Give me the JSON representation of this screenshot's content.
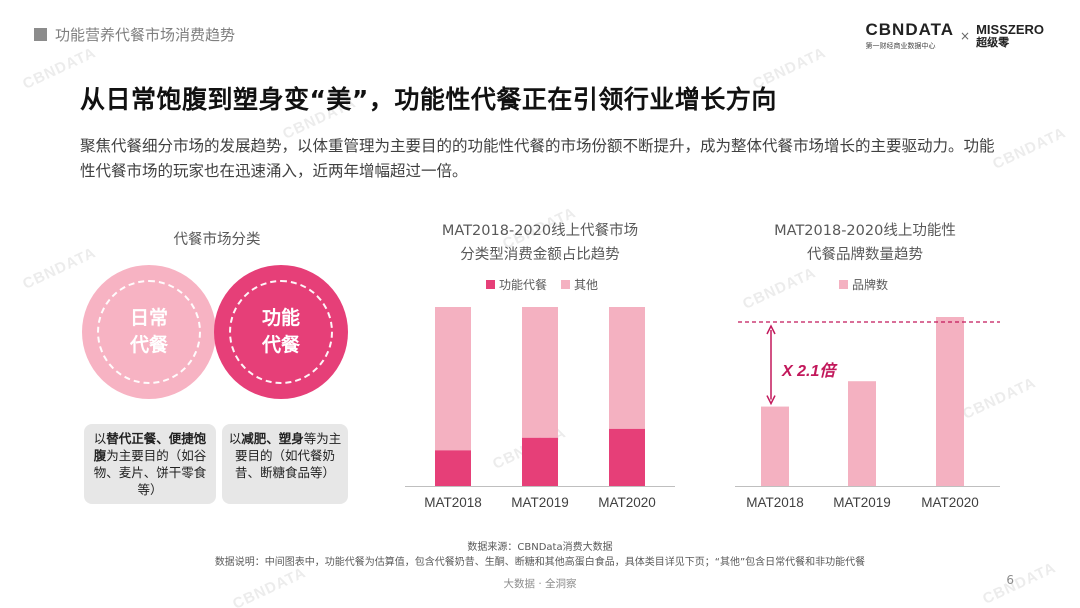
{
  "header": {
    "section_label": "功能营养代餐市场消费趋势",
    "logo_primary": "CBNDATA",
    "logo_primary_sub": "第一财经商业数据中心",
    "logo_separator": "×",
    "logo_secondary": "MISSZERO",
    "logo_secondary_sub": "超级零"
  },
  "headline": "从日常饱腹到塑身变“美”，功能性代餐正在引领行业增长方向",
  "description": "聚焦代餐细分市场的发展趋势，以体重管理为主要目的的功能性代餐的市场份额不断提升，成为整体代餐市场增长的主要驱动力。功能性代餐市场的玩家也在迅速涌入，近两年增幅超过一倍。",
  "classification": {
    "title": "代餐市场分类",
    "circle_left": "日常代餐",
    "circle_right": "功能代餐",
    "box_left": {
      "prefix": "以",
      "bold1": "替代正餐、便捷饱腹",
      "rest": "为主要目的（如谷物、麦片、饼干零食等）"
    },
    "box_right": {
      "prefix": "以",
      "bold1": "减肥、塑身",
      "rest": "等为主要目的（如代餐奶昔、断糖食品等）"
    }
  },
  "chart_data": [
    {
      "type": "bar",
      "stacked": true,
      "title_line1": "MAT2018-2020线上代餐市场",
      "title_line2": "分类型消费金额占比趋势",
      "categories": [
        "MAT2018",
        "MAT2019",
        "MAT2020"
      ],
      "series": [
        {
          "name": "功能代餐",
          "color": "#e63f78",
          "values": [
            20,
            27,
            32
          ]
        },
        {
          "name": "其他",
          "color": "#f4b1c1",
          "values": [
            80,
            73,
            68
          ]
        }
      ],
      "ylim": [
        0,
        100
      ],
      "legend_position": "top"
    },
    {
      "type": "bar",
      "title_line1": "MAT2018-2020线上功能性",
      "title_line2": "代餐品牌数量趋势",
      "categories": [
        "MAT2018",
        "MAT2019",
        "MAT2020"
      ],
      "series": [
        {
          "name": "品牌数",
          "color": "#f4b1c1",
          "values": [
            47,
            62,
            100
          ]
        }
      ],
      "ylim": [
        0,
        100
      ],
      "legend_position": "top",
      "annotation": "X 2.1倍",
      "annotation_color": "#c2185b"
    }
  ],
  "notes": {
    "source": "数据来源：CBNData消费大数据",
    "explanation": "数据说明：中间图表中，功能代餐为估算值，包含代餐奶昔、生酮、断糖和其他高蛋白食品，具体类目详见下页；“其他”包含日常代餐和非功能代餐"
  },
  "footer": {
    "slogan": "大数据 · 全洞察",
    "page": "6"
  }
}
